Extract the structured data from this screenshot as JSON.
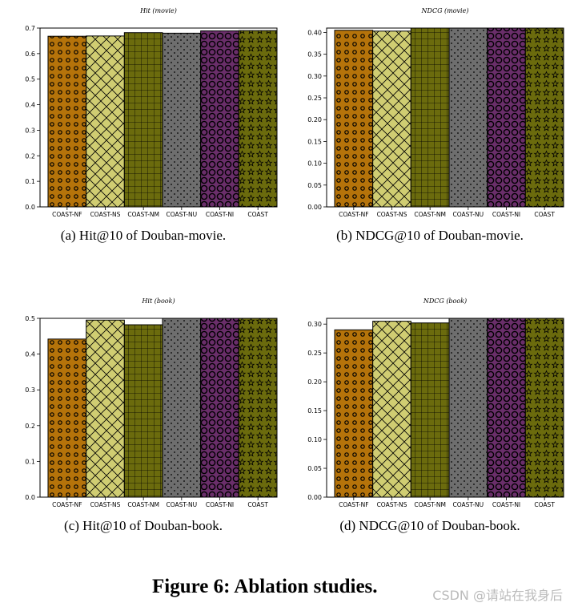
{
  "chart_data": [
    {
      "type": "bar",
      "title": "Hit (movie)",
      "categories": [
        "COAST-NF",
        "COAST-NS",
        "COAST-NM",
        "COAST-NU",
        "COAST-NI",
        "COAST"
      ],
      "values": [
        0.668,
        0.669,
        0.682,
        0.68,
        0.689,
        0.69
      ],
      "ylim": [
        0,
        0.7
      ],
      "yticks": [
        "0.0",
        "0.1",
        "0.2",
        "0.3",
        "0.4",
        "0.5",
        "0.6",
        "0.7"
      ],
      "caption": "(a)  Hit@10 of Douban-movie."
    },
    {
      "type": "bar",
      "title": "NDCG (movie)",
      "categories": [
        "COAST-NF",
        "COAST-NS",
        "COAST-NM",
        "COAST-NU",
        "COAST-NI",
        "COAST"
      ],
      "values": [
        0.405,
        0.403,
        0.413,
        0.412,
        0.411,
        0.414
      ],
      "ylim": [
        0,
        0.41
      ],
      "yticks": [
        "0.00",
        "0.05",
        "0.10",
        "0.15",
        "0.20",
        "0.25",
        "0.30",
        "0.35",
        "0.40"
      ],
      "caption": "(b)  NDCG@10 of Douban-movie."
    },
    {
      "type": "bar",
      "title": "Hit (book)",
      "categories": [
        "COAST-NF",
        "COAST-NS",
        "COAST-NM",
        "COAST-NU",
        "COAST-NI",
        "COAST"
      ],
      "values": [
        0.442,
        0.495,
        0.482,
        0.502,
        0.501,
        0.502
      ],
      "ylim": [
        0,
        0.5
      ],
      "yticks": [
        "0.0",
        "0.1",
        "0.2",
        "0.3",
        "0.4",
        "0.5"
      ],
      "caption": "(c)  Hit@10 of Douban-book."
    },
    {
      "type": "bar",
      "title": "NDCG (book)",
      "categories": [
        "COAST-NF",
        "COAST-NS",
        "COAST-NM",
        "COAST-NU",
        "COAST-NI",
        "COAST"
      ],
      "values": [
        0.29,
        0.305,
        0.302,
        0.311,
        0.31,
        0.311
      ],
      "ylim": [
        0,
        0.31
      ],
      "yticks": [
        "0.00",
        "0.05",
        "0.10",
        "0.15",
        "0.20",
        "0.25",
        "0.30"
      ],
      "caption": "(d)  NDCG@10 of Douban-book."
    }
  ],
  "bar_styles": [
    {
      "fill": "#b5730a",
      "pattern": "rings-small"
    },
    {
      "fill": "#d0cd72",
      "pattern": "crosshatch-diag"
    },
    {
      "fill": "#6b6b0d",
      "pattern": "grid"
    },
    {
      "fill": "#6e6e6e",
      "pattern": "dots"
    },
    {
      "fill": "#6a2e6a",
      "pattern": "rings-large"
    },
    {
      "fill": "#6b6b0d",
      "pattern": "stars"
    }
  ],
  "figure_title": "Figure 6: Ablation studies.",
  "watermark": "CSDN @请站在我身后"
}
